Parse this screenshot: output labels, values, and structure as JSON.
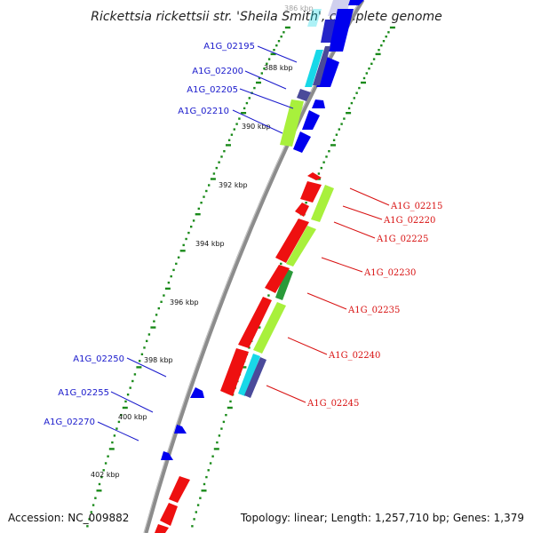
{
  "title": "Rickettsia rickettsii str. 'Sheila Smith', complete genome",
  "footer": {
    "accession": "Accession: NC_009882",
    "stats": "Topology: linear; Length: 1,257,710 bp; Genes: 1,379"
  },
  "colors": {
    "backbone": "#8c8c8c",
    "dots": "#1a8a1a",
    "cds_forward": "#0000ee",
    "cds_reverse": "#ee1010",
    "cog_lime": "#a8f03c",
    "cog_cyan": "#18d8e8",
    "cog_slate": "#4a4a9a",
    "cog_green": "#2a9a3a",
    "label_left": "#1a1acc",
    "label_right": "#d81010"
  },
  "scale": [
    {
      "label": "388 kbp"
    },
    {
      "label": "390 kbp"
    },
    {
      "label": "392 kbp"
    },
    {
      "label": "394 kbp"
    },
    {
      "label": "396 kbp"
    },
    {
      "label": "398 kbp"
    },
    {
      "label": "400 kbp"
    },
    {
      "label": "402 kbp"
    }
  ],
  "genes_left": [
    {
      "label": "A1G_02195"
    },
    {
      "label": "A1G_02200"
    },
    {
      "label": "A1G_02205"
    },
    {
      "label": "A1G_02210"
    },
    {
      "label": "A1G_02250"
    },
    {
      "label": "A1G_02255"
    },
    {
      "label": "A1G_02270"
    }
  ],
  "genes_right": [
    {
      "label": "A1G_02215"
    },
    {
      "label": "A1G_02220"
    },
    {
      "label": "A1G_02225"
    },
    {
      "label": "A1G_02230"
    },
    {
      "label": "A1G_02235"
    },
    {
      "label": "A1G_02240"
    },
    {
      "label": "A1G_02245"
    }
  ]
}
